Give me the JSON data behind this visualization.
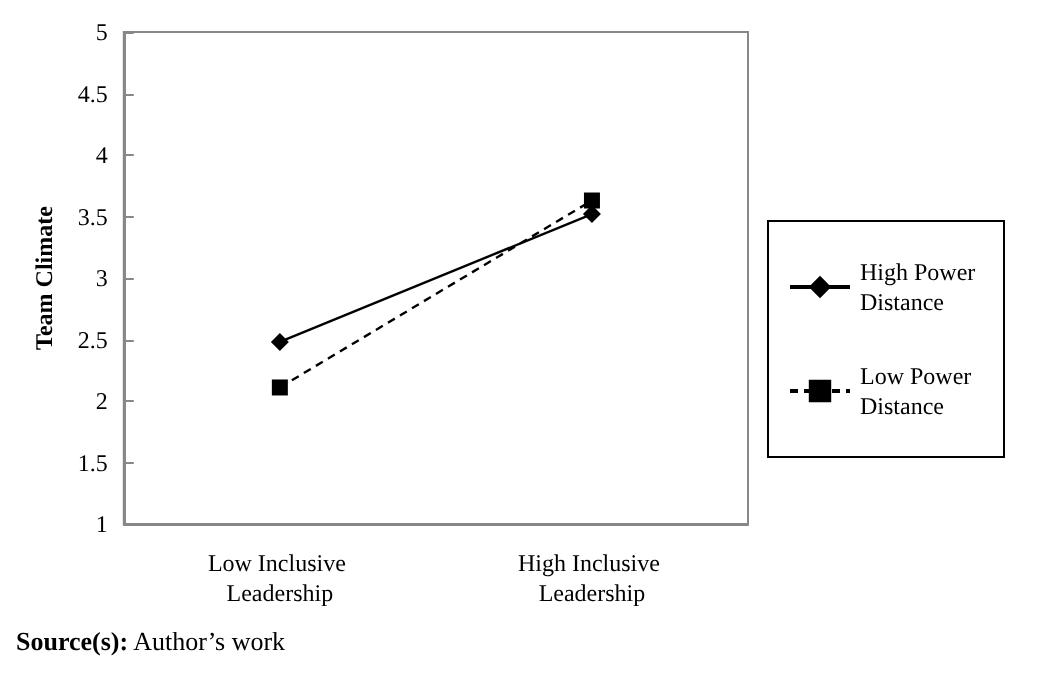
{
  "chart_data": {
    "type": "line",
    "ylabel": "Team Climate",
    "categories": [
      "Low Inclusive Leadership",
      "High Inclusive Leadership"
    ],
    "series": [
      {
        "name": "High Power Distance",
        "color": "#000000",
        "values": [
          2.48,
          3.52
        ],
        "marker": "diamond",
        "line_style": "solid"
      },
      {
        "name": "Low Power Distance",
        "color": "#000000",
        "values": [
          2.11,
          3.63
        ],
        "marker": "square",
        "line_style": "dashed"
      }
    ],
    "ylim": [
      1,
      5
    ],
    "yticks": [
      1,
      1.5,
      2,
      2.5,
      3,
      3.5,
      4,
      4.5,
      5
    ],
    "grid": false,
    "legend": "right",
    "annotations": [
      "Source(s): Author’s work"
    ]
  }
}
